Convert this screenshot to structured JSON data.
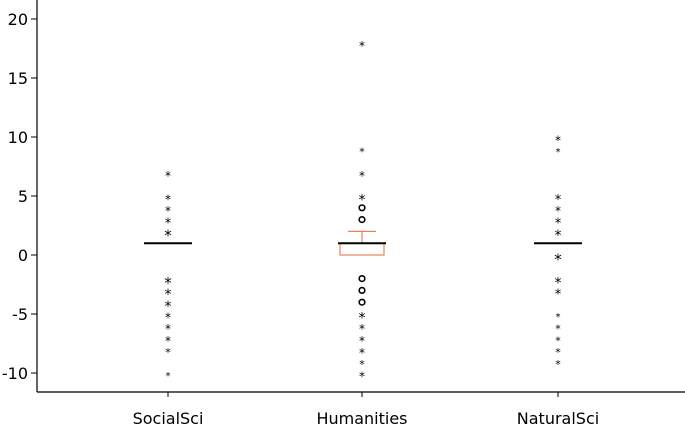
{
  "chart_data": {
    "type": "boxplot",
    "title": "",
    "xlabel": "",
    "ylabel": "",
    "ylim": [
      -11.5,
      21
    ],
    "yticks": [
      -10,
      -5,
      0,
      5,
      10,
      15,
      20
    ],
    "ytick_labels": [
      "-10",
      "-5",
      "0",
      "5",
      "10",
      "15",
      "20"
    ],
    "grid": false,
    "colors": {
      "box": "#e8845a",
      "median": "#000000",
      "outlier": "#000000"
    },
    "categories": [
      "SocialSci",
      "Humanities",
      "NaturalSci"
    ],
    "groups": [
      {
        "label": "SocialSci",
        "median": 1,
        "q1": 1,
        "q3": 1,
        "whisker_low": 1,
        "whisker_high": 1,
        "circle_outliers": [],
        "star_outliers": [
          {
            "y": 7,
            "s": 12
          },
          {
            "y": 5,
            "s": 12
          },
          {
            "y": 4,
            "s": 12
          },
          {
            "y": 3,
            "s": 13
          },
          {
            "y": 2,
            "s": 15
          },
          {
            "y": -2,
            "s": 15
          },
          {
            "y": -3,
            "s": 14
          },
          {
            "y": -4,
            "s": 14
          },
          {
            "y": -5,
            "s": 12
          },
          {
            "y": -6,
            "s": 12
          },
          {
            "y": -7,
            "s": 12
          },
          {
            "y": -8,
            "s": 11
          },
          {
            "y": -10,
            "s": 10
          }
        ]
      },
      {
        "label": "Humanities",
        "median": 1,
        "q1": 0,
        "q3": 1,
        "whisker_low": 0,
        "whisker_high": 2,
        "circle_outliers": [
          4,
          3,
          -2,
          -3,
          -4
        ],
        "star_outliers": [
          {
            "y": 18,
            "s": 12
          },
          {
            "y": 9,
            "s": 11
          },
          {
            "y": 7,
            "s": 12
          },
          {
            "y": 5,
            "s": 14
          },
          {
            "y": -5,
            "s": 14
          },
          {
            "y": -6,
            "s": 12
          },
          {
            "y": -7,
            "s": 12
          },
          {
            "y": -8,
            "s": 12
          },
          {
            "y": -9,
            "s": 11
          },
          {
            "y": -10,
            "s": 12
          }
        ]
      },
      {
        "label": "NaturalSci",
        "median": 1,
        "q1": 1,
        "q3": 1,
        "whisker_low": 1,
        "whisker_high": 1,
        "circle_outliers": [],
        "star_outliers": [
          {
            "y": 10,
            "s": 12
          },
          {
            "y": 9,
            "s": 10
          },
          {
            "y": 5,
            "s": 13
          },
          {
            "y": 4,
            "s": 12
          },
          {
            "y": 3,
            "s": 13
          },
          {
            "y": 2,
            "s": 14
          },
          {
            "y": 0,
            "s": 15
          },
          {
            "y": -2,
            "s": 14
          },
          {
            "y": -3,
            "s": 13
          },
          {
            "y": -5,
            "s": 10
          },
          {
            "y": -6,
            "s": 11
          },
          {
            "y": -7,
            "s": 11
          },
          {
            "y": -8,
            "s": 11
          },
          {
            "y": -9,
            "s": 11
          }
        ]
      }
    ]
  }
}
